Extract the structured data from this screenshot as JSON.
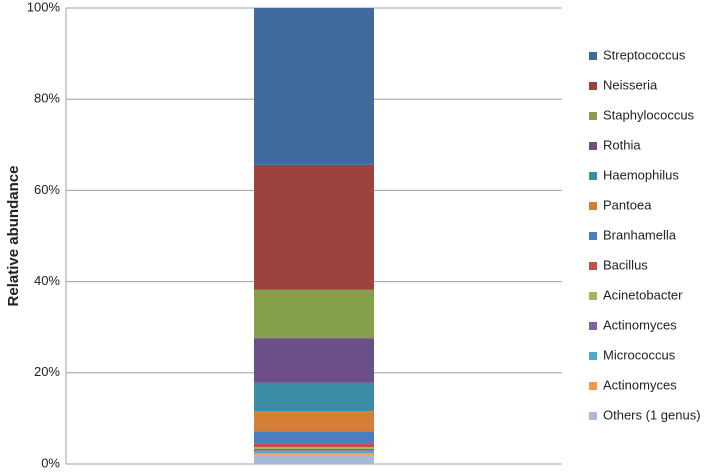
{
  "chart_data": {
    "type": "stacked_bar",
    "y_label": "Relative abundance",
    "categories": [
      null
    ],
    "series": [
      {
        "name": "Streptococcus",
        "color": "#416a9c",
        "values": [
          34.4
        ]
      },
      {
        "name": "Neisseria",
        "color": "#9e4240",
        "values": [
          27.4
        ]
      },
      {
        "name": "Staphylococcus",
        "color": "#84a04b",
        "values": [
          10.6
        ]
      },
      {
        "name": "Rothia",
        "color": "#6b5088",
        "values": [
          9.8
        ]
      },
      {
        "name": "Haemophilus",
        "color": "#3b8da5",
        "values": [
          6.2
        ]
      },
      {
        "name": "Pantoea",
        "color": "#d47f35",
        "values": [
          4.4
        ]
      },
      {
        "name": "Branhamella",
        "color": "#4a7ec0",
        "values": [
          2.8
        ]
      },
      {
        "name": "Bacillus",
        "color": "#c0504d",
        "values": [
          0.7
        ]
      },
      {
        "name": "Acinetobacter",
        "color": "#9bbb59",
        "values": [
          0.4
        ]
      },
      {
        "name": "Actinomyces",
        "color": "#8064a2",
        "values": [
          0.4
        ]
      },
      {
        "name": "Micrococcus",
        "color": "#4bacc6",
        "values": [
          0.5
        ]
      },
      {
        "name": "Actinomyces",
        "color": "#f79646",
        "values": [
          0.4
        ]
      },
      {
        "name": "Others (1 genus)",
        "color": "#a7b8d8",
        "values": [
          2.0
        ]
      }
    ],
    "ylim": [
      0,
      100
    ],
    "yticks": [
      {
        "value": 0,
        "label": "0%"
      },
      {
        "value": 20,
        "label": "20%"
      },
      {
        "value": 40,
        "label": "40%"
      },
      {
        "value": 60,
        "label": "60%"
      },
      {
        "value": 80,
        "label": "80%"
      },
      {
        "value": 100,
        "label": "100%"
      }
    ],
    "grid": true
  }
}
